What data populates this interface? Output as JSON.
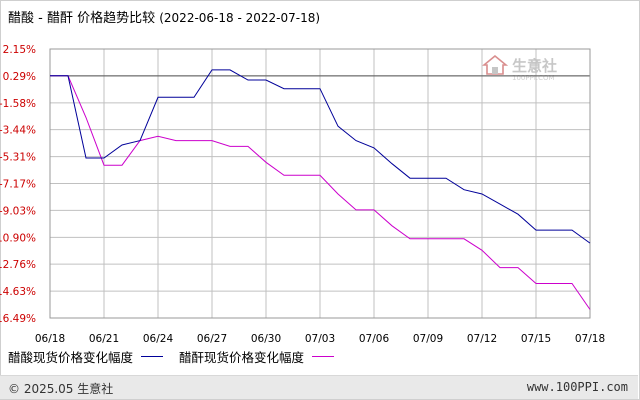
{
  "header": {
    "title": "醋酸 - 醋酐 价格趋势比较",
    "range": "(2022-06-18 - 2022-07-18)"
  },
  "footer": {
    "copyright": "© 2025.05 生意社",
    "site": "www.100PPI.com"
  },
  "watermark": {
    "brand": "生意社",
    "sub": "100PPI.COM"
  },
  "colors": {
    "series1": "#000099",
    "series2": "#cc00cc",
    "grid": "#c0c0c0",
    "baseline": "#555555"
  },
  "chart_data": {
    "type": "line",
    "ylim": [
      -16.49,
      2.15
    ],
    "y_ticks": [
      "2.15%",
      "0.29%",
      "-1.58%",
      "-3.44%",
      "-5.31%",
      "-7.17%",
      "-9.03%",
      "-10.90%",
      "-12.76%",
      "-14.63%",
      "-16.49%"
    ],
    "y_tick_values": [
      2.15,
      0.29,
      -1.58,
      -3.44,
      -5.31,
      -7.17,
      -9.03,
      -10.9,
      -12.76,
      -14.63,
      -16.49
    ],
    "x": [
      "06/18",
      "06/19",
      "06/20",
      "06/21",
      "06/22",
      "06/23",
      "06/24",
      "06/25",
      "06/26",
      "06/27",
      "06/28",
      "06/29",
      "06/30",
      "07/01",
      "07/02",
      "07/03",
      "07/04",
      "07/05",
      "07/06",
      "07/07",
      "07/08",
      "07/09",
      "07/10",
      "07/11",
      "07/12",
      "07/13",
      "07/14",
      "07/15",
      "07/16",
      "07/17",
      "07/18"
    ],
    "x_tick_labels": [
      "06/18",
      "06/21",
      "06/24",
      "06/27",
      "06/30",
      "07/03",
      "07/06",
      "07/09",
      "07/12",
      "07/15",
      "07/18"
    ],
    "x_tick_index": [
      0,
      3,
      6,
      9,
      12,
      15,
      18,
      21,
      24,
      27,
      30
    ],
    "grid": true,
    "legend": "bottom",
    "series": [
      {
        "name": "醋酸现货价格变化幅度",
        "values": [
          0.29,
          0.29,
          -5.4,
          -5.4,
          -4.5,
          -4.2,
          -1.2,
          -1.2,
          -1.2,
          0.7,
          0.7,
          0.0,
          0.0,
          -0.6,
          -0.6,
          -0.6,
          -3.2,
          -4.2,
          -4.7,
          -5.8,
          -6.8,
          -6.8,
          -6.8,
          -7.6,
          -7.9,
          -8.6,
          -9.3,
          -10.4,
          -10.4,
          -10.4,
          -11.3
        ]
      },
      {
        "name": "醋酐现货价格变化幅度",
        "values": [
          0.29,
          0.29,
          -2.6,
          -5.9,
          -5.9,
          -4.2,
          -3.9,
          -4.2,
          -4.2,
          -4.2,
          -4.6,
          -4.6,
          -5.7,
          -6.6,
          -6.6,
          -6.6,
          -7.9,
          -9.0,
          -9.0,
          -10.1,
          -11.0,
          -11.0,
          -11.0,
          -11.0,
          -11.8,
          -13.0,
          -13.0,
          -14.1,
          -14.1,
          -14.1,
          -15.9
        ]
      }
    ]
  }
}
